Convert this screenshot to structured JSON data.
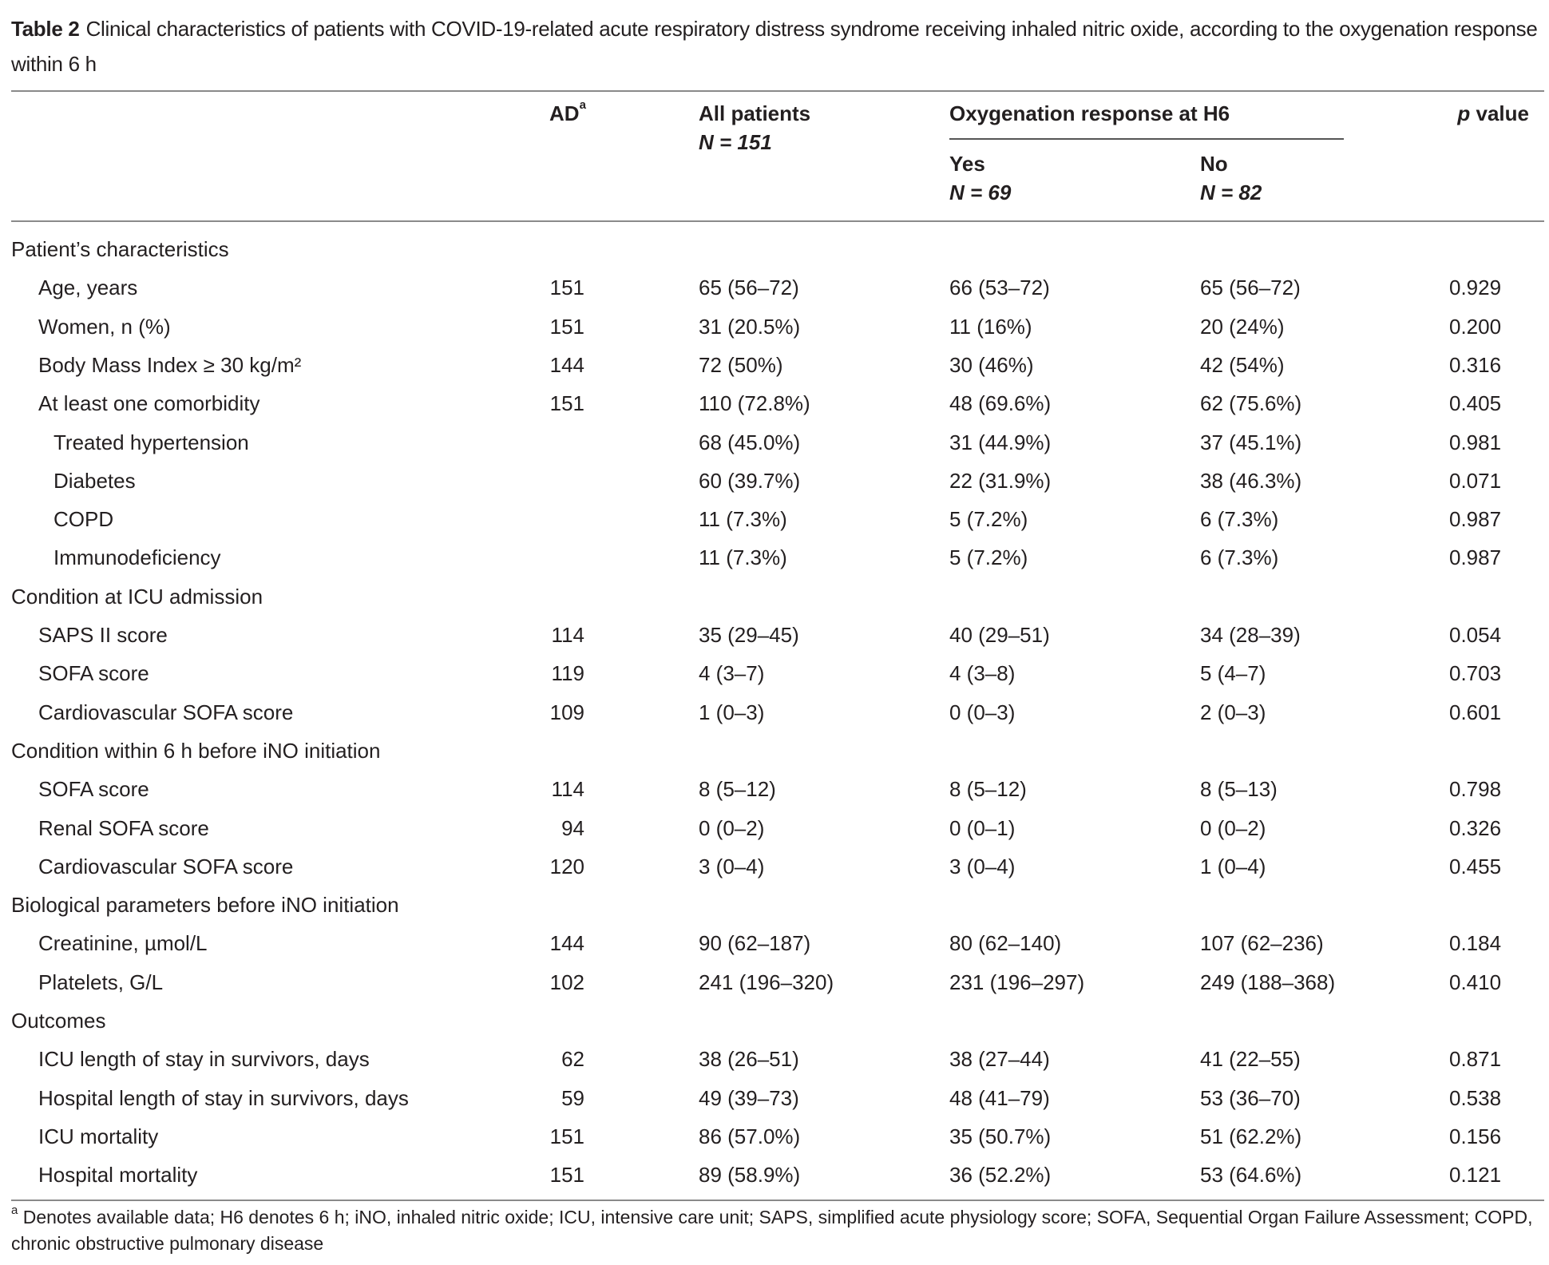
{
  "title": {
    "label": "Table 2",
    "text": "Clinical characteristics of patients with COVID-19-related acute respiratory distress syndrome receiving inhaled nitric oxide, according to the oxygenation response within 6 h"
  },
  "header": {
    "ad": "AD",
    "ad_sup": "a",
    "all": "All patients",
    "all_n": "N = 151",
    "group": "Oxygenation response at H6",
    "yes": "Yes",
    "yes_n": "N = 69",
    "no": "No",
    "no_n": "N = 82",
    "p_italic": "p",
    "p_rest": " value"
  },
  "rows": [
    {
      "label": "Patient’s characteristics",
      "level": 0
    },
    {
      "label": "Age, years",
      "level": 1,
      "ad": "151",
      "all": "65 (56–72)",
      "yes": "66 (53–72)",
      "no": "65 (56–72)",
      "p": "0.929"
    },
    {
      "label": "Women, n (%)",
      "level": 1,
      "ad": "151",
      "all": "31 (20.5%)",
      "yes": "11 (16%)",
      "no": "20 (24%)",
      "p": "0.200"
    },
    {
      "label": "Body Mass Index ≥ 30 kg/m²",
      "level": 1,
      "ad": "144",
      "all": "72 (50%)",
      "yes": "30 (46%)",
      "no": "42 (54%)",
      "p": "0.316"
    },
    {
      "label": "At least one comorbidity",
      "level": 1,
      "ad": "151",
      "all": "110 (72.8%)",
      "yes": "48 (69.6%)",
      "no": "62 (75.6%)",
      "p": "0.405"
    },
    {
      "label": "Treated hypertension",
      "level": 2,
      "ad": "",
      "all": "68 (45.0%)",
      "yes": "31 (44.9%)",
      "no": "37 (45.1%)",
      "p": "0.981"
    },
    {
      "label": "Diabetes",
      "level": 2,
      "ad": "",
      "all": "60 (39.7%)",
      "yes": "22 (31.9%)",
      "no": "38 (46.3%)",
      "p": "0.071"
    },
    {
      "label": "COPD",
      "level": 2,
      "ad": "",
      "all": "11 (7.3%)",
      "yes": "5 (7.2%)",
      "no": "6 (7.3%)",
      "p": "0.987"
    },
    {
      "label": "Immunodeficiency",
      "level": 2,
      "ad": "",
      "all": "11 (7.3%)",
      "yes": "5 (7.2%)",
      "no": "6 (7.3%)",
      "p": "0.987"
    },
    {
      "label": "Condition at ICU admission",
      "level": 0
    },
    {
      "label": "SAPS II score",
      "level": 1,
      "ad": "114",
      "all": "35 (29–45)",
      "yes": "40 (29–51)",
      "no": "34 (28–39)",
      "p": "0.054"
    },
    {
      "label": "SOFA score",
      "level": 1,
      "ad": "119",
      "all": "4 (3–7)",
      "yes": "4 (3–8)",
      "no": "5 (4–7)",
      "p": "0.703"
    },
    {
      "label": "Cardiovascular SOFA score",
      "level": 1,
      "ad": "109",
      "all": "1 (0–3)",
      "yes": "0 (0–3)",
      "no": "2 (0–3)",
      "p": "0.601"
    },
    {
      "label": "Condition within 6 h before iNO initiation",
      "level": 0
    },
    {
      "label": "SOFA score",
      "level": 1,
      "ad": "114",
      "all": "8 (5–12)",
      "yes": "8 (5–12)",
      "no": "8 (5–13)",
      "p": "0.798"
    },
    {
      "label": "Renal SOFA score",
      "level": 1,
      "ad": "94",
      "all": "0 (0–2)",
      "yes": "0 (0–1)",
      "no": "0 (0–2)",
      "p": "0.326"
    },
    {
      "label": "Cardiovascular SOFA score",
      "level": 1,
      "ad": "120",
      "all": "3 (0–4)",
      "yes": "3 (0–4)",
      "no": "1 (0–4)",
      "p": "0.455"
    },
    {
      "label": "Biological parameters before iNO initiation",
      "level": 0
    },
    {
      "label": "Creatinine, µmol/L",
      "level": 1,
      "ad": "144",
      "all": "90 (62–187)",
      "yes": "80 (62–140)",
      "no": "107 (62–236)",
      "p": "0.184"
    },
    {
      "label": "Platelets, G/L",
      "level": 1,
      "ad": "102",
      "all": "241 (196–320)",
      "yes": "231 (196–297)",
      "no": "249 (188–368)",
      "p": "0.410"
    },
    {
      "label": "Outcomes",
      "level": 0
    },
    {
      "label": "ICU length of stay in survivors, days",
      "level": 1,
      "ad": "62",
      "all": "38 (26–51)",
      "yes": "38 (27–44)",
      "no": "41 (22–55)",
      "p": "0.871"
    },
    {
      "label": "Hospital length of stay in survivors, days",
      "level": 1,
      "ad": "59",
      "all": "49 (39–73)",
      "yes": "48 (41–79)",
      "no": "53 (36–70)",
      "p": "0.538"
    },
    {
      "label": "ICU mortality",
      "level": 1,
      "ad": "151",
      "all": "86 (57.0%)",
      "yes": "35 (50.7%)",
      "no": "51 (62.2%)",
      "p": "0.156"
    },
    {
      "label": "Hospital mortality",
      "level": 1,
      "ad": "151",
      "all": "89 (58.9%)",
      "yes": "36 (52.2%)",
      "no": "53 (64.6%)",
      "p": "0.121"
    }
  ],
  "footnote": {
    "sup": "a",
    "text": " Denotes available data; H6 denotes 6 h; iNO, inhaled nitric oxide; ICU, intensive care unit; SAPS, simplified acute physiology score; SOFA, Sequential Organ Failure Assessment; COPD, chronic obstructive pulmonary disease"
  }
}
